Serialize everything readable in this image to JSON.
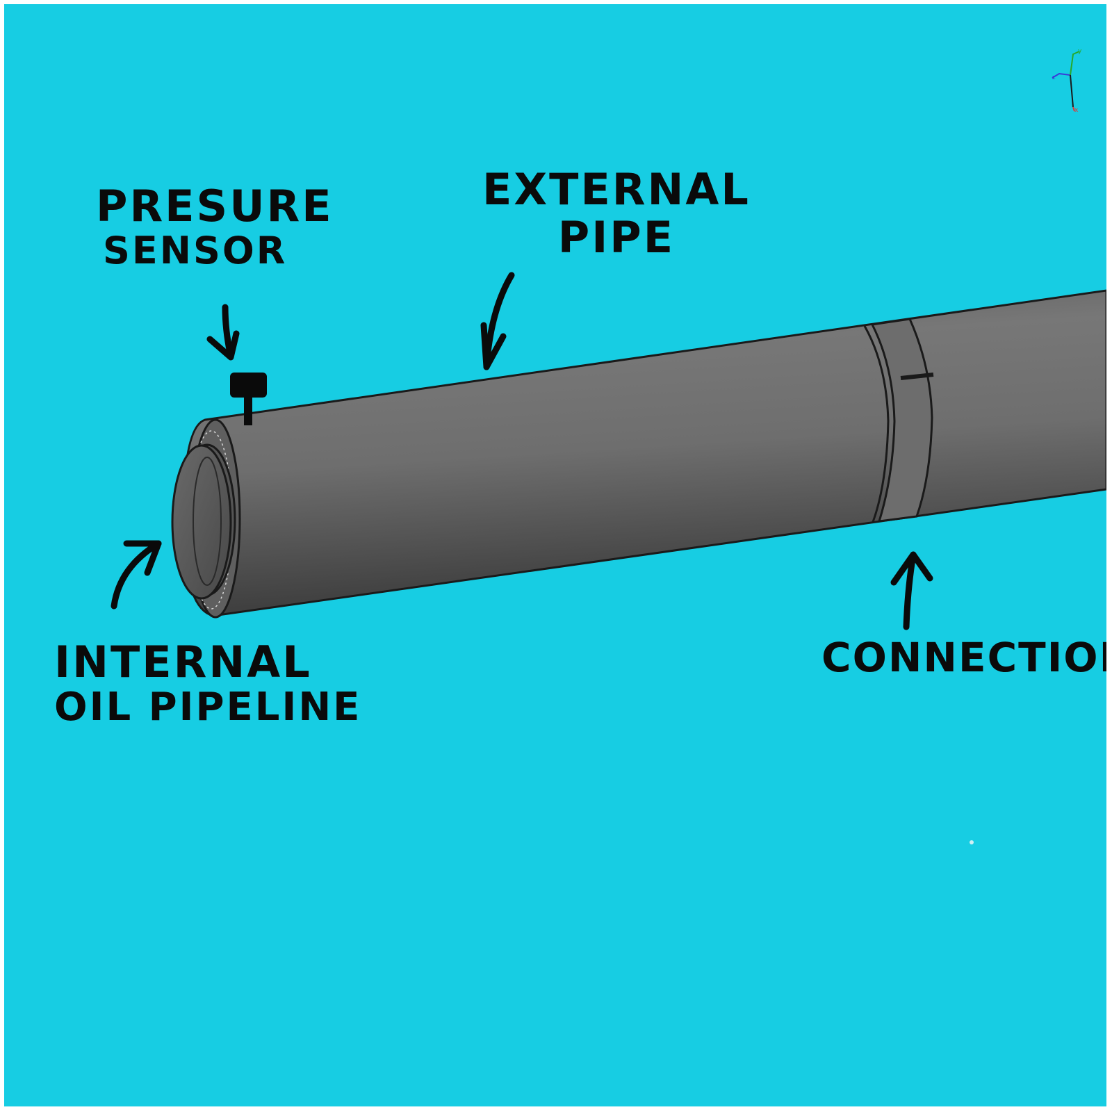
{
  "diagram": {
    "labels": {
      "pressure_sensor": [
        "Presure",
        "sensor"
      ],
      "external_pipe": [
        "External",
        "Pipe"
      ],
      "internal_pipeline": [
        "Internal",
        "oil pipeline"
      ],
      "connection": "Connection"
    },
    "colors": {
      "background": "#17cde3",
      "pipe": "#767676",
      "pipe_edge": "#1a1a1a",
      "ink": "#0a0a0a"
    },
    "axis_triad_icon": "xyz-axis-triad-icon"
  }
}
